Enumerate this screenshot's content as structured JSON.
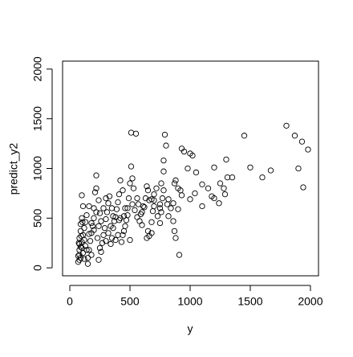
{
  "chart_data": {
    "type": "scatter",
    "xlabel": "y",
    "ylabel": "predict_y2",
    "xlim": [
      -60,
      2067
    ],
    "ylim": [
      -80,
      2080
    ],
    "xticks": [
      0,
      500,
      1000,
      1500,
      2000
    ],
    "yticks": [
      0,
      500,
      1000,
      1500,
      2000
    ],
    "color": "#000000",
    "x": [
      1800,
      1870,
      1930,
      1980,
      1900,
      1940,
      1600,
      1670,
      1500,
      1450,
      1350,
      1310,
      1300,
      1290,
      1280,
      1250,
      1200,
      1180,
      1200,
      1240,
      1150,
      1100,
      1050,
      1040,
      1020,
      1000,
      980,
      950,
      930,
      920,
      930,
      900,
      910,
      880,
      870,
      900,
      870,
      880,
      860,
      840,
      820,
      810,
      800,
      790,
      780,
      780,
      760,
      780,
      770,
      750,
      750,
      760,
      750,
      720,
      700,
      700,
      690,
      680,
      680,
      660,
      650,
      640,
      650,
      640,
      630,
      610,
      600,
      590,
      580,
      560,
      560,
      550,
      510,
      510,
      520,
      500,
      490,
      480,
      470,
      460,
      450,
      440,
      430,
      440,
      420,
      410,
      400,
      390,
      380,
      370,
      360,
      350,
      340,
      330,
      320,
      310,
      300,
      290,
      280,
      270,
      260,
      250,
      240,
      230,
      220,
      220,
      210,
      200,
      200,
      190,
      180,
      170,
      160,
      150,
      150,
      140,
      130,
      120,
      110,
      100,
      100,
      110,
      100,
      90,
      90,
      80,
      80,
      80,
      80,
      80,
      70,
      90,
      100,
      110,
      120,
      130,
      140,
      160,
      180,
      200,
      220,
      240,
      260,
      280,
      300,
      320,
      340,
      360,
      380,
      400,
      420,
      450,
      480,
      520,
      540,
      570,
      620,
      660,
      700,
      730,
      600,
      500,
      350,
      250,
      180,
      120,
      90,
      70,
      75,
      95,
      105,
      160,
      240,
      300,
      410,
      460,
      530,
      680,
      820,
      860,
      1000,
      1100
    ],
    "y": [
      1430,
      1330,
      1270,
      1190,
      1000,
      810,
      910,
      980,
      1010,
      1330,
      910,
      910,
      1090,
      740,
      800,
      850,
      1010,
      720,
      700,
      650,
      800,
      840,
      960,
      750,
      1130,
      1150,
      1000,
      1170,
      1200,
      780,
      730,
      590,
      130,
      300,
      370,
      800,
      850,
      880,
      650,
      600,
      690,
      640,
      1230,
      1340,
      1080,
      970,
      850,
      780,
      700,
      640,
      600,
      560,
      450,
      800,
      740,
      680,
      570,
      460,
      350,
      320,
      370,
      300,
      780,
      820,
      700,
      620,
      560,
      540,
      470,
      510,
      700,
      1350,
      1360,
      1020,
      900,
      850,
      700,
      600,
      480,
      420,
      370,
      330,
      260,
      780,
      880,
      740,
      660,
      590,
      510,
      470,
      400,
      300,
      240,
      720,
      650,
      560,
      490,
      400,
      330,
      250,
      160,
      200,
      80,
      300,
      930,
      800,
      760,
      600,
      500,
      420,
      350,
      270,
      180,
      100,
      40,
      530,
      460,
      400,
      330,
      260,
      730,
      620,
      500,
      440,
      370,
      300,
      240,
      180,
      130,
      80,
      60,
      100,
      200,
      150,
      280,
      220,
      180,
      340,
      450,
      380,
      560,
      420,
      470,
      600,
      270,
      350,
      420,
      520,
      280,
      330,
      500,
      520,
      530,
      640,
      580,
      640,
      610,
      680,
      620,
      520,
      430,
      280,
      600,
      550,
      130,
      90,
      210,
      120,
      250,
      320,
      460,
      620,
      680,
      700,
      480,
      600,
      800,
      690,
      520,
      470,
      690,
      620
    ]
  }
}
